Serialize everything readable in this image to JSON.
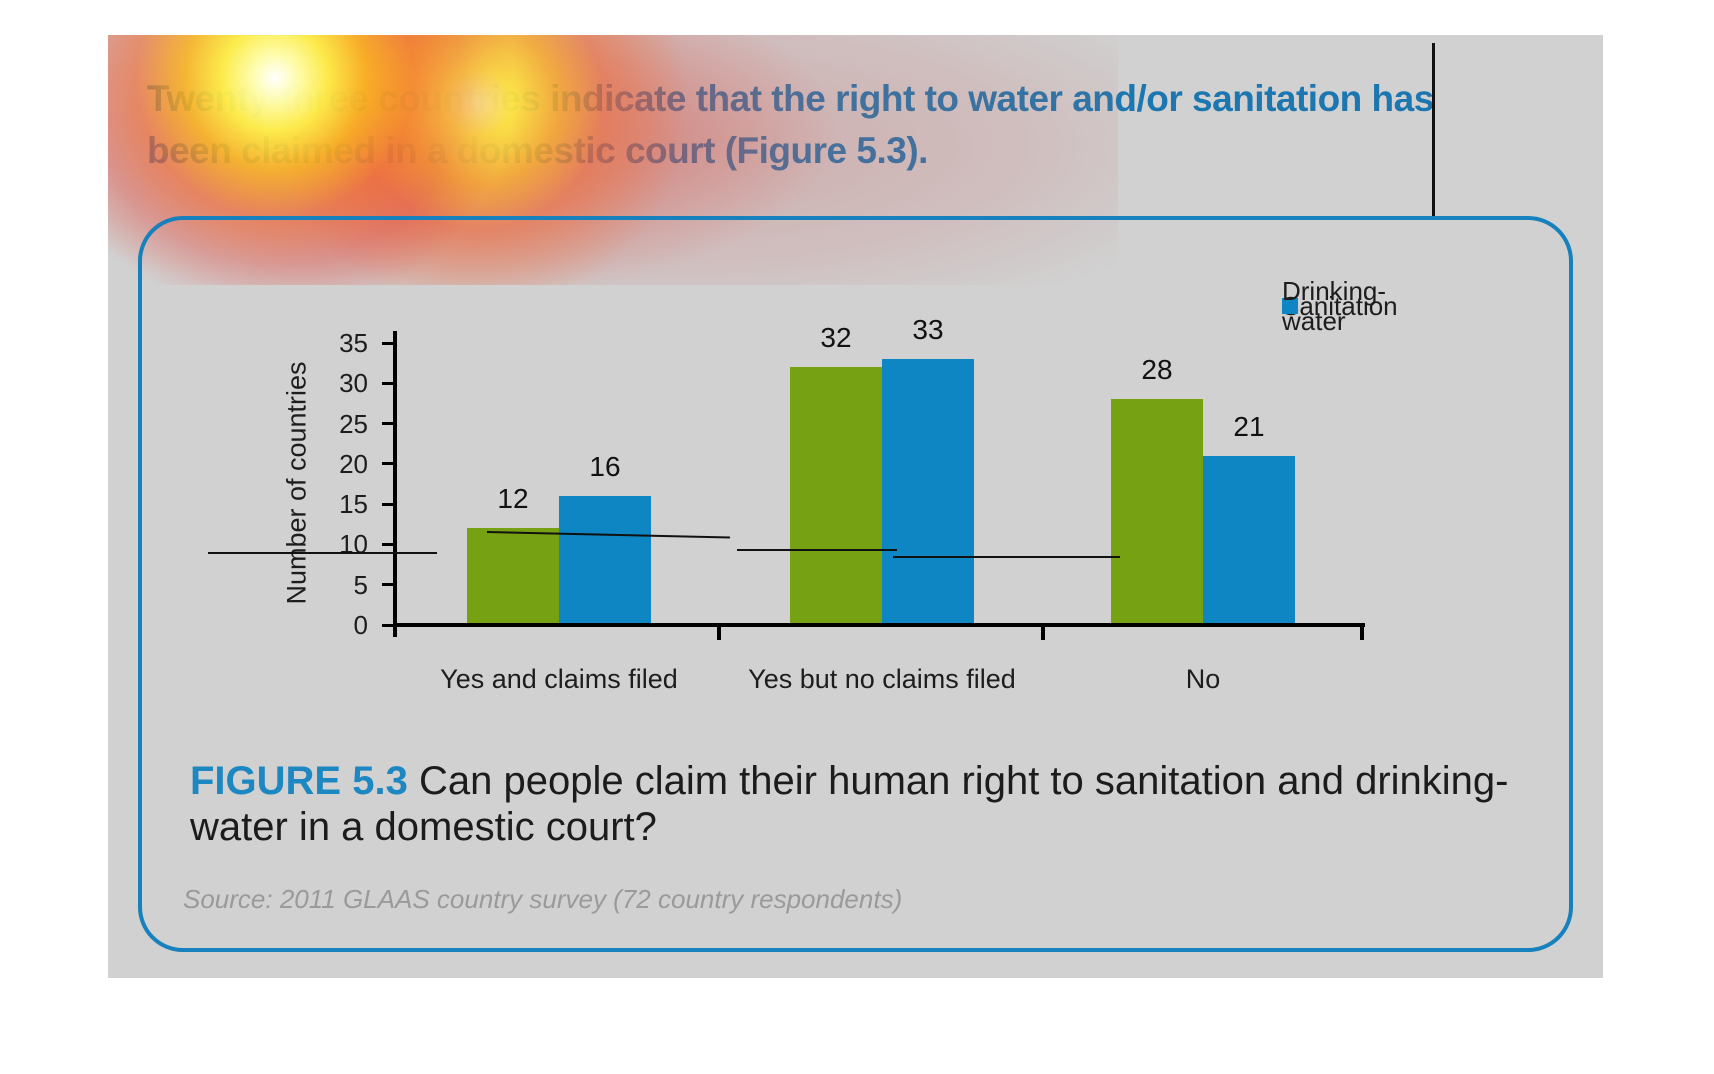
{
  "document": {
    "headline": "Twenty-three countries indicate that the right to water and/or sanitation has been claimed in a domestic court (Figure 5.3).",
    "figure_caption": {
      "label": "FIGURE 5.3",
      "text": "Can people claim their human right to sanitation and drinking-water in a domestic court?"
    },
    "source_note": "Source: 2011 GLAAS country survey (72 country respondents)"
  },
  "chart_data": {
    "type": "bar",
    "categories": [
      "Yes and claims filed",
      "Yes but no claims filed",
      "No"
    ],
    "series": [
      {
        "name": "Sanitation",
        "color": "#76a112",
        "values": [
          12,
          32,
          28
        ]
      },
      {
        "name": "Drinking-water",
        "color": "#0d86c3",
        "values": [
          16,
          33,
          21
        ]
      }
    ],
    "ylabel": "Number of countries",
    "ylim": [
      0,
      35
    ],
    "ytick_step": 5,
    "grid": false,
    "legend_position": "top-right"
  },
  "colors": {
    "headline_blue": "#1c76af",
    "figure_label_blue": "#1d87c2",
    "box_border_blue": "#1681bd",
    "background_gray": "#d1d1d1",
    "bar_green": "#76a112",
    "bar_blue": "#0d86c3",
    "text_dark": "#1d1d1d",
    "source_gray": "#9a9a9a"
  }
}
